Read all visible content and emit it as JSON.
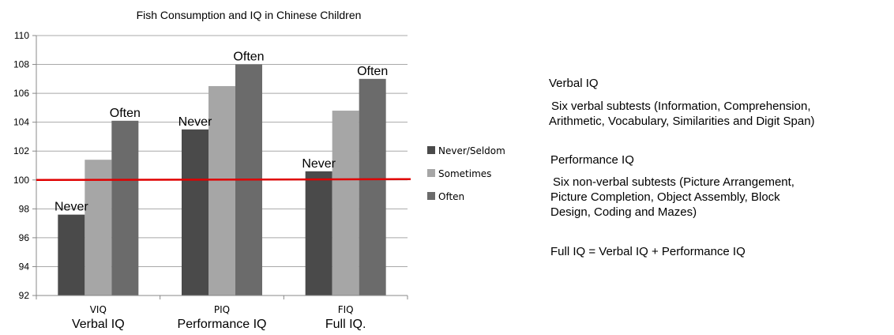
{
  "chart_data": {
    "type": "bar",
    "title": "Fish Consumption and IQ in Chinese Children",
    "categories": [
      "VIQ",
      "PIQ",
      "FIQ"
    ],
    "category_sublabels": [
      "Verbal IQ",
      "Performance IQ",
      "Full IQ."
    ],
    "series": [
      {
        "name": "Never/Seldom",
        "values": [
          97.6,
          103.5,
          100.6
        ],
        "color": "#4a4a4a"
      },
      {
        "name": "Sometimes",
        "values": [
          101.4,
          106.5,
          104.8
        ],
        "color": "#a6a6a6"
      },
      {
        "name": "Often",
        "values": [
          104.1,
          108.0,
          107.0
        ],
        "color": "#6b6b6b"
      }
    ],
    "ylim": [
      92,
      110
    ],
    "yticks": [
      92,
      94,
      96,
      98,
      100,
      102,
      104,
      106,
      108,
      110
    ],
    "reference_line": {
      "value": 100,
      "color": "#e00000"
    },
    "annotations": [
      {
        "text": "Never",
        "category": 0,
        "series": 0
      },
      {
        "text": "Often",
        "category": 0,
        "series": 2
      },
      {
        "text": "Never",
        "category": 1,
        "series": 0
      },
      {
        "text": "Often",
        "category": 1,
        "series": 2
      },
      {
        "text": "Never",
        "category": 2,
        "series": 0
      },
      {
        "text": "Often",
        "category": 2,
        "series": 2
      }
    ],
    "grid": true,
    "legend": "right"
  },
  "notes": {
    "verbal_title": "Verbal IQ",
    "verbal_line1": "Six verbal subtests (Information, Comprehension,",
    "verbal_line2": "Arithmetic, Vocabulary, Similarities and Digit Span)",
    "performance_title": "Performance IQ",
    "performance_line1": "Six non-verbal subtests (Picture Arrangement,",
    "performance_line2": "Picture Completion, Object Assembly, Block",
    "performance_line3": "Design, Coding and Mazes)",
    "full_iq": "Full IQ = Verbal IQ + Performance IQ"
  }
}
